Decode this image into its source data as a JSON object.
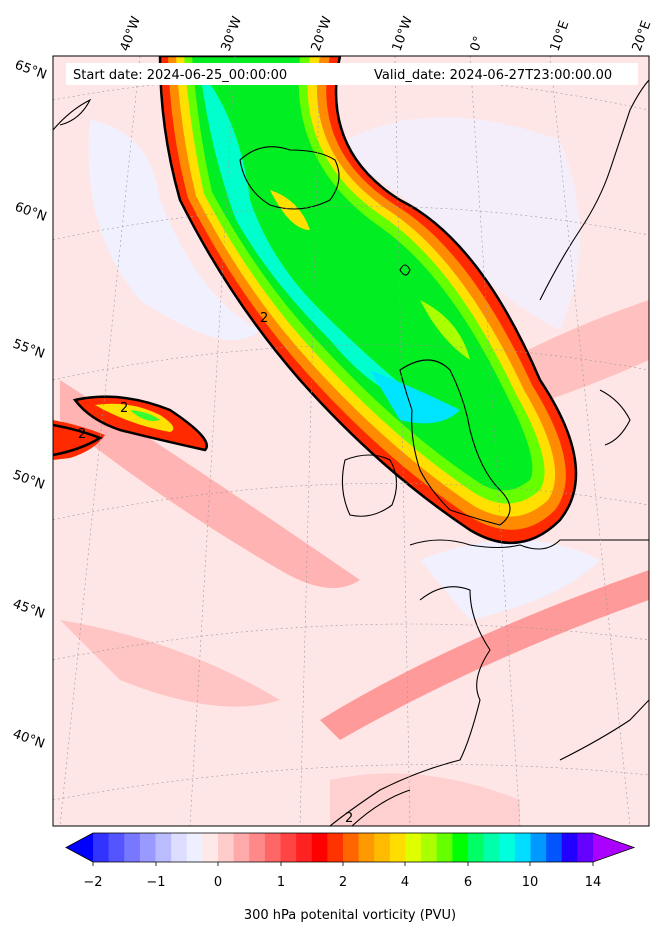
{
  "header": {
    "start_label": "Start date: 2024-06-25_00:00:00",
    "valid_label": "Valid_date: 2024-06-27T23:00:00.00"
  },
  "gridlines": {
    "longitudes": [
      "40°W",
      "30°W",
      "20°W",
      "10°W",
      "0°",
      "10°E",
      "20°E"
    ],
    "latitudes": [
      "65°N",
      "60°N",
      "55°N",
      "50°N",
      "45°N",
      "40°N"
    ]
  },
  "contour_labels": [
    "2",
    "2",
    "2",
    "2"
  ],
  "colorbar": {
    "label": "300 hPa potenital vorticity (PVU)",
    "ticks": [
      "−2",
      "−1",
      "0",
      "1",
      "2",
      "4",
      "6",
      "8",
      "10",
      "14"
    ],
    "colors": [
      "#0000ff",
      "#3333ff",
      "#5555ff",
      "#7777ff",
      "#9999ff",
      "#bbbbff",
      "#ddddff",
      "#eef0ff",
      "#ffe8e8",
      "#ffcccc",
      "#ffaaaa",
      "#ff8888",
      "#ff6666",
      "#ff4444",
      "#ff2222",
      "#ff0000",
      "#ff3300",
      "#ff6600",
      "#ff9900",
      "#ffbb00",
      "#ffdd00",
      "#ddff00",
      "#aaff00",
      "#66ff00",
      "#00ff00",
      "#00ff66",
      "#00ffaa",
      "#00ffdd",
      "#00ddff",
      "#0099ff",
      "#0055ff",
      "#2200ff",
      "#6600ff",
      "#aa00ff"
    ]
  }
}
